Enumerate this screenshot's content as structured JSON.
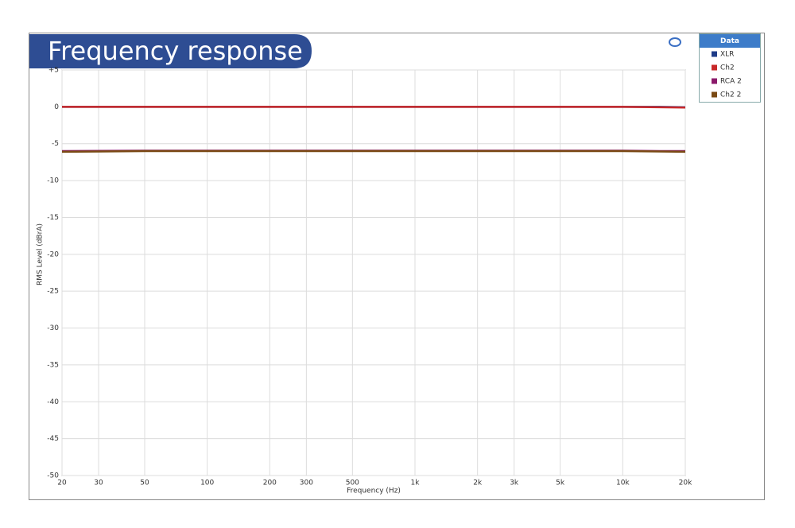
{
  "chart_data": {
    "type": "line",
    "title": "Frequency response",
    "x_label": "Frequency (Hz)",
    "y_label": "RMS Level (dBrA)",
    "legend_title": "Data",
    "legend": "top-right",
    "x_log": true,
    "grid": true,
    "x": [
      20,
      50,
      100,
      200,
      500,
      1000,
      2000,
      5000,
      10000,
      15000,
      20000
    ],
    "series": [
      {
        "name": "XLR",
        "color": "#1f3c88",
        "values": [
          0,
          0,
          0,
          0,
          0,
          0,
          0,
          0,
          0,
          0,
          -0.05
        ]
      },
      {
        "name": "Ch2",
        "color": "#c8282a",
        "values": [
          0,
          0,
          0,
          0,
          0,
          0,
          0,
          0,
          0,
          -0.05,
          -0.1
        ]
      },
      {
        "name": "RCA 2",
        "color": "#8b1a6b",
        "values": [
          -6.0,
          -5.95,
          -5.95,
          -5.95,
          -5.95,
          -5.95,
          -5.95,
          -5.95,
          -5.95,
          -6.0,
          -6.0
        ]
      },
      {
        "name": "Ch2 2",
        "color": "#7a4a14",
        "values": [
          -6.1,
          -6.0,
          -6.0,
          -6.0,
          -6.0,
          -6.0,
          -6.0,
          -6.0,
          -6.0,
          -6.05,
          -6.1
        ]
      }
    ],
    "xlim": [
      20,
      20000
    ],
    "xticks": [
      20,
      30,
      50,
      100,
      200,
      300,
      500,
      {
        "value": 1000,
        "label": "1k"
      },
      {
        "value": 2000,
        "label": "2k"
      },
      {
        "value": 3000,
        "label": "3k"
      },
      {
        "value": 5000,
        "label": "5k"
      },
      {
        "value": 10000,
        "label": "10k"
      },
      {
        "value": 20000,
        "label": "20k"
      }
    ],
    "ylim": [
      -50,
      5
    ],
    "yticks": [
      {
        "value": 5,
        "label": "+5"
      },
      0,
      -5,
      -10,
      -15,
      -20,
      -25,
      -30,
      -35,
      -40,
      -45,
      -50
    ]
  }
}
